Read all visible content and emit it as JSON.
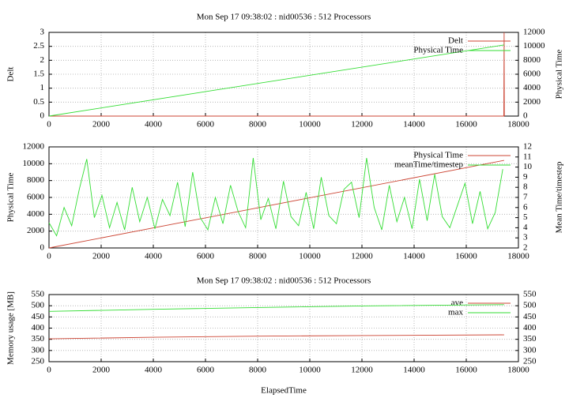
{
  "chart_data": [
    {
      "type": "line",
      "title": "Mon Sep 17 09:38:02 : nid00536 : 512 Processors",
      "ylabel": "Delt",
      "y2label": "Physical Time",
      "xlim": [
        0,
        18000
      ],
      "xticks": [
        0,
        2000,
        4000,
        6000,
        8000,
        10000,
        12000,
        14000,
        16000,
        18000
      ],
      "ylim": [
        0,
        3
      ],
      "yticks": [
        0,
        0.5,
        1,
        1.5,
        2,
        2.5,
        3
      ],
      "y2lim": [
        0,
        12000
      ],
      "y2ticks": [
        0,
        2000,
        4000,
        6000,
        8000,
        10000,
        12000
      ],
      "grid": true,
      "legend": "top right",
      "series": [
        {
          "name": "Delt",
          "color": "#cc4433",
          "x": [
            0,
            17440,
            17450,
            17460
          ],
          "values": [
            0,
            0,
            3,
            0
          ]
        },
        {
          "name": "Physical Time",
          "color": "#33dd33",
          "axis": "y2",
          "x": [
            0,
            17450
          ],
          "values": [
            0,
            10200
          ]
        }
      ]
    },
    {
      "type": "line",
      "ylabel": "Physical Time",
      "y2label": "Mean Time/timestep",
      "xlim": [
        0,
        18000
      ],
      "xticks": [
        0,
        2000,
        4000,
        6000,
        8000,
        10000,
        12000,
        14000,
        16000,
        18000
      ],
      "ylim": [
        0,
        12000
      ],
      "yticks": [
        0,
        2000,
        4000,
        6000,
        8000,
        10000,
        12000
      ],
      "y2lim": [
        2,
        12
      ],
      "y2ticks": [
        2,
        3,
        4,
        5,
        6,
        7,
        8,
        9,
        10,
        11,
        12
      ],
      "grid": true,
      "legend": "top right",
      "series": [
        {
          "name": "Physical Time",
          "color": "#cc4433",
          "x": [
            0,
            17450
          ],
          "values": [
            0,
            10400
          ]
        },
        {
          "name": "meanTime/timestep",
          "color": "#33dd33",
          "axis": "y2",
          "x": [
            0,
            290,
            580,
            870,
            1160,
            1450,
            1740,
            2030,
            2320,
            2610,
            2900,
            3190,
            3480,
            3770,
            4060,
            4350,
            4640,
            4930,
            5220,
            5510,
            5800,
            6090,
            6380,
            6670,
            6960,
            7250,
            7540,
            7830,
            8120,
            8410,
            8700,
            8990,
            9280,
            9570,
            9860,
            10150,
            10440,
            10730,
            11020,
            11310,
            11600,
            11890,
            12180,
            12470,
            12760,
            13050,
            13340,
            13630,
            13920,
            14210,
            14500,
            14790,
            15080,
            15370,
            15660,
            15950,
            16240,
            16530,
            16820,
            17110,
            17400
          ],
          "values": [
            4.5,
            3.2,
            6.0,
            4.2,
            7.8,
            10.8,
            5.0,
            7.2,
            4.0,
            6.5,
            3.8,
            8.0,
            4.6,
            7.0,
            3.9,
            6.8,
            5.2,
            8.5,
            4.1,
            9.5,
            5.0,
            3.8,
            7.0,
            4.4,
            8.2,
            5.6,
            4.0,
            10.9,
            4.8,
            6.9,
            3.9,
            8.6,
            5.1,
            4.2,
            7.5,
            3.9,
            9.0,
            5.2,
            4.4,
            7.8,
            8.5,
            5.0,
            10.9,
            6.0,
            3.8,
            8.2,
            4.6,
            7.0,
            3.9,
            8.8,
            4.7,
            9.3,
            5.1,
            4.0,
            6.2,
            8.4,
            4.4,
            7.6,
            3.9,
            5.5,
            9.8
          ]
        }
      ]
    },
    {
      "type": "line",
      "title": "Mon Sep 17 09:38:02 : nid00536 : 512 Processors",
      "ylabel": "Memory usage [MB]",
      "xlabel": "ElapsedTime",
      "xlim": [
        0,
        18000
      ],
      "xticks": [
        0,
        2000,
        4000,
        6000,
        8000,
        10000,
        12000,
        14000,
        16000,
        18000
      ],
      "ylim": [
        250,
        550
      ],
      "yticks": [
        250,
        300,
        350,
        400,
        450,
        500,
        550
      ],
      "y2lim": [
        250,
        550
      ],
      "y2ticks": [
        250,
        300,
        350,
        400,
        450,
        500,
        550
      ],
      "grid": true,
      "legend": "top right",
      "series": [
        {
          "name": "ave",
          "color": "#cc4433",
          "x": [
            0,
            4000,
            8000,
            12000,
            17450
          ],
          "values": [
            352,
            359,
            364,
            367,
            370
          ]
        },
        {
          "name": "max",
          "color": "#33dd33",
          "x": [
            0,
            4000,
            8000,
            12000,
            17450
          ],
          "values": [
            475,
            484,
            492,
            499,
            505
          ]
        }
      ]
    }
  ]
}
